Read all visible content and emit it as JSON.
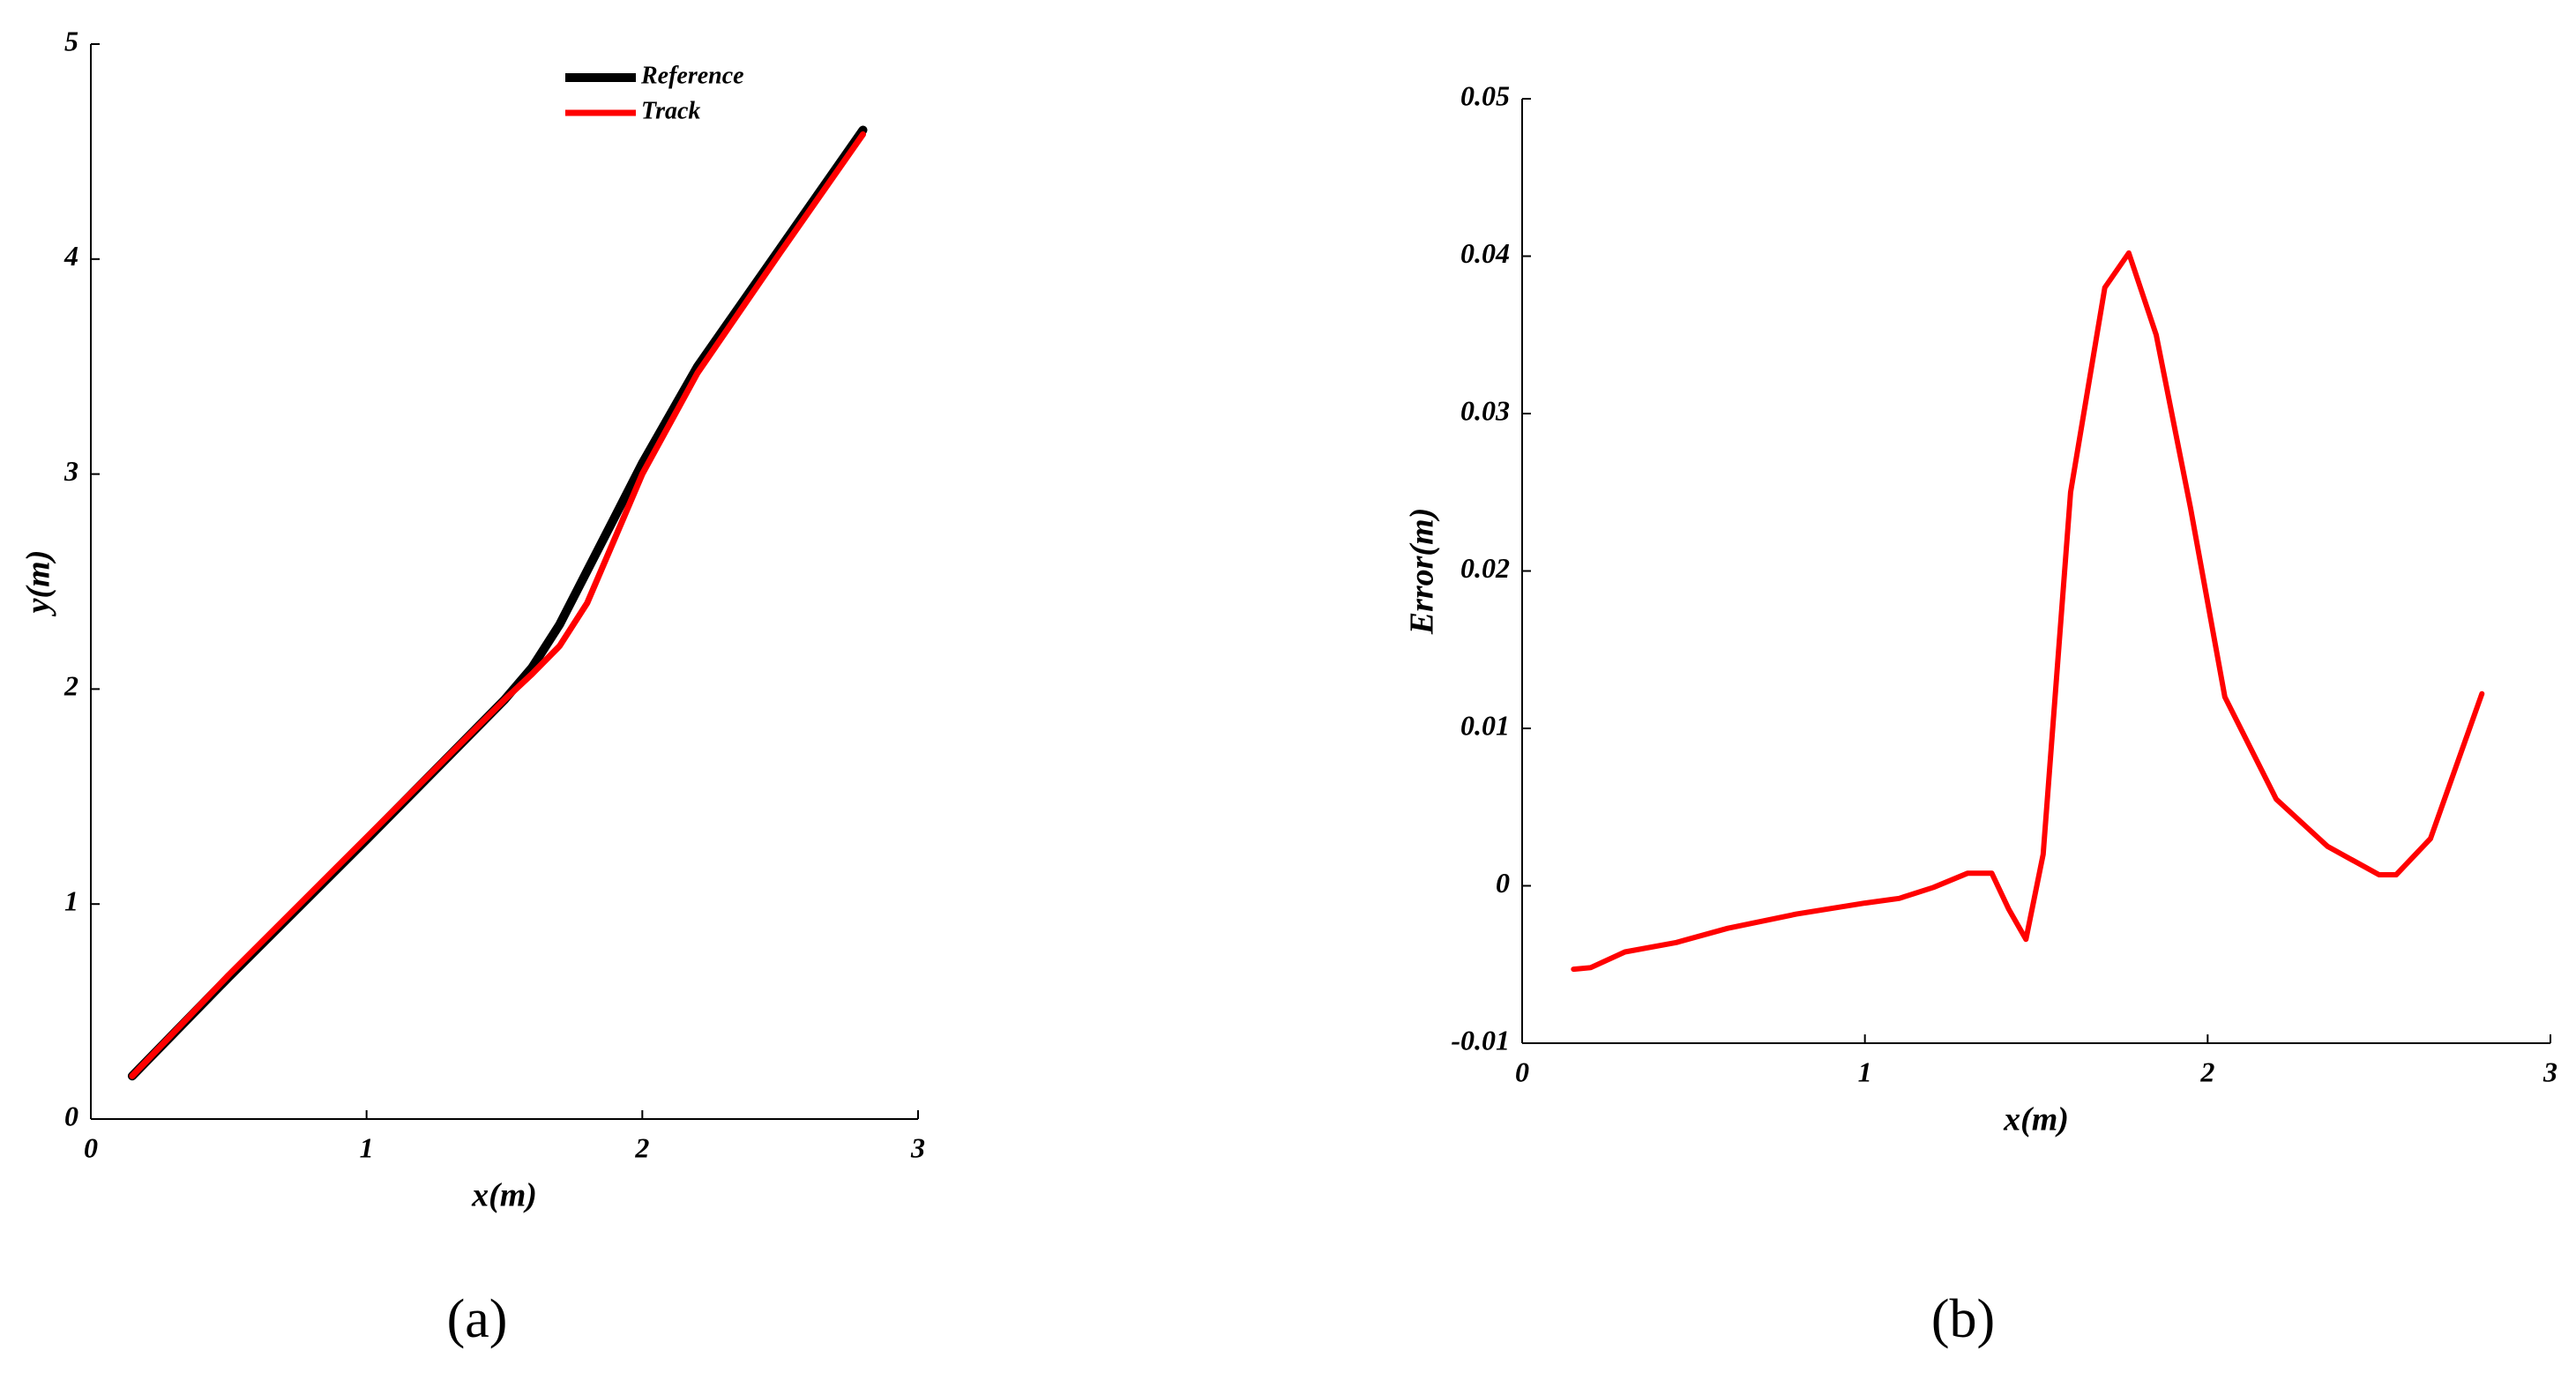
{
  "chart_data": [
    {
      "type": "line",
      "caption": "(a)",
      "x_label": "x(m)",
      "y_label": "y(m)",
      "xlim": [
        0,
        3
      ],
      "ylim": [
        0,
        5
      ],
      "xticks": [
        0,
        1,
        2,
        3
      ],
      "yticks": [
        0,
        1,
        2,
        3,
        4,
        5
      ],
      "legend": "upper right",
      "x": [
        0.15,
        0.5,
        1.0,
        1.5,
        1.6,
        1.7,
        1.8,
        1.9,
        2.0,
        2.2,
        2.5,
        2.8
      ],
      "series": [
        {
          "name": "Reference",
          "color": "#000000",
          "width": 10,
          "values": [
            0.2,
            0.66,
            1.3,
            1.95,
            2.1,
            2.3,
            2.55,
            2.8,
            3.05,
            3.5,
            4.05,
            4.6
          ]
        },
        {
          "name": "Track",
          "color": "#ff0000",
          "width": 7,
          "values": [
            0.2,
            0.67,
            1.31,
            1.95,
            2.07,
            2.2,
            2.4,
            2.7,
            3.0,
            3.47,
            4.03,
            4.58
          ]
        }
      ]
    },
    {
      "type": "line",
      "caption": "(b)",
      "x_label": "x(m)",
      "y_label": "Error(m)",
      "xlim": [
        0,
        3
      ],
      "ylim": [
        -0.01,
        0.05
      ],
      "xticks": [
        0,
        1,
        2,
        3
      ],
      "yticks": [
        -0.01,
        0,
        0.01,
        0.02,
        0.03,
        0.04,
        0.05
      ],
      "x": [
        0.15,
        0.2,
        0.3,
        0.45,
        0.6,
        0.8,
        1.0,
        1.1,
        1.2,
        1.3,
        1.37,
        1.42,
        1.47,
        1.52,
        1.6,
        1.7,
        1.77,
        1.85,
        1.95,
        2.05,
        2.2,
        2.35,
        2.5,
        2.55,
        2.65,
        2.8
      ],
      "series": [
        {
          "color": "#ff0000",
          "width": 6,
          "values": [
            -0.0053,
            -0.0052,
            -0.0042,
            -0.0036,
            -0.0027,
            -0.0018,
            -0.0011,
            -0.0008,
            -0.0001,
            0.0008,
            0.0008,
            -0.0015,
            -0.0034,
            0.002,
            0.025,
            0.038,
            0.0402,
            0.035,
            0.024,
            0.012,
            0.0055,
            0.0025,
            0.0007,
            0.0007,
            0.003,
            0.0122
          ]
        }
      ]
    }
  ]
}
